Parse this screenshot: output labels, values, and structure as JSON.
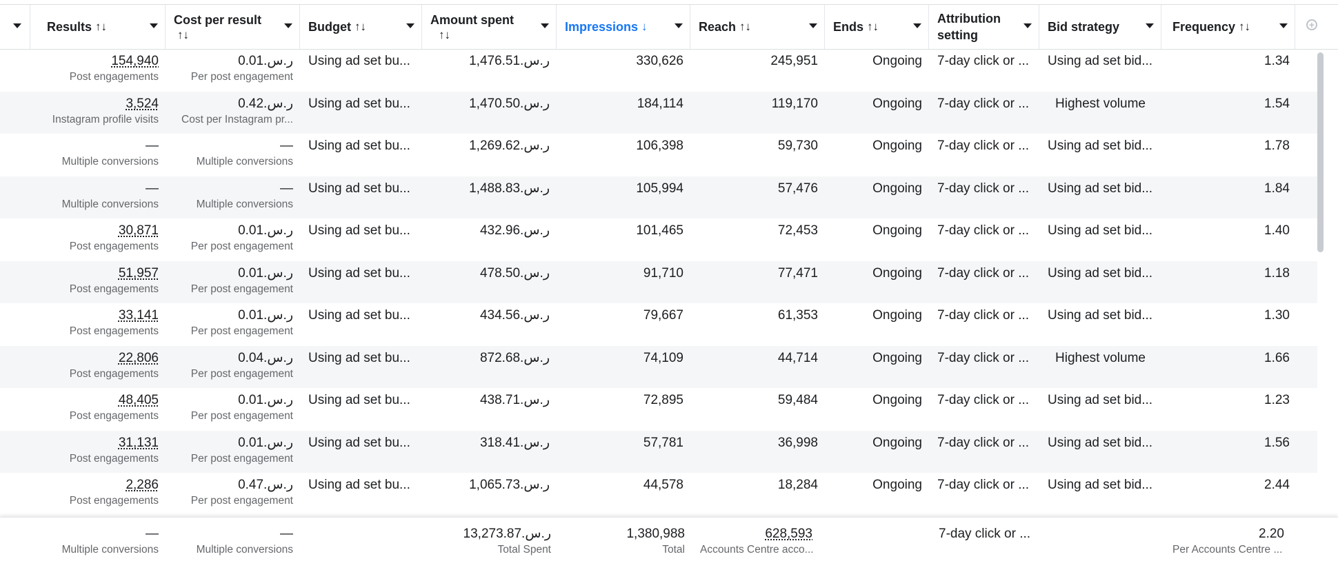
{
  "header": {
    "columns": [
      {
        "label": "Results",
        "sort": "↑↓"
      },
      {
        "label": "Cost per result",
        "sort": "↑↓"
      },
      {
        "label": "Budget",
        "sort": "↑↓"
      },
      {
        "label": "Amount spent",
        "sort": "↑↓"
      },
      {
        "label": "Impressions",
        "sort": "↓"
      },
      {
        "label": "Reach",
        "sort": "↑↓"
      },
      {
        "label": "Ends",
        "sort": "↑↓"
      },
      {
        "label": "Attribution setting",
        "sort": ""
      },
      {
        "label": "Bid strategy",
        "sort": ""
      },
      {
        "label": "Frequency",
        "sort": "↑↓"
      }
    ],
    "add_column_icon": "plus-circle-icon"
  },
  "rows": [
    {
      "results": "154,940",
      "results_type": "Post engagements",
      "cpr": "0.01.ر.س",
      "cpr_type": "Per post engagement",
      "budget": "Using ad set bu...",
      "spent": "1,476.51.ر.س",
      "impressions": "330,626",
      "reach": "245,951",
      "ends": "Ongoing",
      "attribution": "7-day click or ...",
      "bid": "Using ad set bid...",
      "frequency": "1.34"
    },
    {
      "results": "3,524",
      "results_type": "Instagram profile visits",
      "cpr": "0.42.ر.س",
      "cpr_type": "Cost per Instagram pr...",
      "budget": "Using ad set bu...",
      "spent": "1,470.50.ر.س",
      "impressions": "184,114",
      "reach": "119,170",
      "ends": "Ongoing",
      "attribution": "7-day click or ...",
      "bid": "Highest volume",
      "frequency": "1.54"
    },
    {
      "results": "—",
      "results_type": "Multiple conversions",
      "cpr": "—",
      "cpr_type": "Multiple conversions",
      "budget": "Using ad set bu...",
      "spent": "1,269.62.ر.س",
      "impressions": "106,398",
      "reach": "59,730",
      "ends": "Ongoing",
      "attribution": "7-day click or ...",
      "bid": "Using ad set bid...",
      "frequency": "1.78"
    },
    {
      "results": "—",
      "results_type": "Multiple conversions",
      "cpr": "—",
      "cpr_type": "Multiple conversions",
      "budget": "Using ad set bu...",
      "spent": "1,488.83.ر.س",
      "impressions": "105,994",
      "reach": "57,476",
      "ends": "Ongoing",
      "attribution": "7-day click or ...",
      "bid": "Using ad set bid...",
      "frequency": "1.84"
    },
    {
      "results": "30,871",
      "results_type": "Post engagements",
      "cpr": "0.01.ر.س",
      "cpr_type": "Per post engagement",
      "budget": "Using ad set bu...",
      "spent": "432.96.ر.س",
      "impressions": "101,465",
      "reach": "72,453",
      "ends": "Ongoing",
      "attribution": "7-day click or ...",
      "bid": "Using ad set bid...",
      "frequency": "1.40"
    },
    {
      "results": "51,957",
      "results_type": "Post engagements",
      "cpr": "0.01.ر.س",
      "cpr_type": "Per post engagement",
      "budget": "Using ad set bu...",
      "spent": "478.50.ر.س",
      "impressions": "91,710",
      "reach": "77,471",
      "ends": "Ongoing",
      "attribution": "7-day click or ...",
      "bid": "Using ad set bid...",
      "frequency": "1.18"
    },
    {
      "results": "33,141",
      "results_type": "Post engagements",
      "cpr": "0.01.ر.س",
      "cpr_type": "Per post engagement",
      "budget": "Using ad set bu...",
      "spent": "434.56.ر.س",
      "impressions": "79,667",
      "reach": "61,353",
      "ends": "Ongoing",
      "attribution": "7-day click or ...",
      "bid": "Using ad set bid...",
      "frequency": "1.30"
    },
    {
      "results": "22,806",
      "results_type": "Post engagements",
      "cpr": "0.04.ر.س",
      "cpr_type": "Per post engagement",
      "budget": "Using ad set bu...",
      "spent": "872.68.ر.س",
      "impressions": "74,109",
      "reach": "44,714",
      "ends": "Ongoing",
      "attribution": "7-day click or ...",
      "bid": "Highest volume",
      "frequency": "1.66"
    },
    {
      "results": "48,405",
      "results_type": "Post engagements",
      "cpr": "0.01.ر.س",
      "cpr_type": "Per post engagement",
      "budget": "Using ad set bu...",
      "spent": "438.71.ر.س",
      "impressions": "72,895",
      "reach": "59,484",
      "ends": "Ongoing",
      "attribution": "7-day click or ...",
      "bid": "Using ad set bid...",
      "frequency": "1.23"
    },
    {
      "results": "31,131",
      "results_type": "Post engagements",
      "cpr": "0.01.ر.س",
      "cpr_type": "Per post engagement",
      "budget": "Using ad set bu...",
      "spent": "318.41.ر.س",
      "impressions": "57,781",
      "reach": "36,998",
      "ends": "Ongoing",
      "attribution": "7-day click or ...",
      "bid": "Using ad set bid...",
      "frequency": "1.56"
    },
    {
      "results": "2,286",
      "results_type": "Post engagements",
      "cpr": "0.47.ر.س",
      "cpr_type": "Per post engagement",
      "budget": "Using ad set bu...",
      "spent": "1,065.73.ر.س",
      "impressions": "44,578",
      "reach": "18,284",
      "ends": "Ongoing",
      "attribution": "7-day click or ...",
      "bid": "Using ad set bid...",
      "frequency": "2.44"
    }
  ],
  "totals": {
    "results": "—",
    "results_type": "Multiple conversions",
    "cpr": "—",
    "cpr_type": "Multiple conversions",
    "spent": "13,273.87.ر.س",
    "spent_label": "Total Spent",
    "impressions": "1,380,988",
    "impressions_label": "Total",
    "reach": "628,593",
    "reach_label": "Accounts Centre acco...",
    "attribution": "7-day click or ...",
    "frequency": "2.20",
    "frequency_label": "Per Accounts Centre ..."
  }
}
